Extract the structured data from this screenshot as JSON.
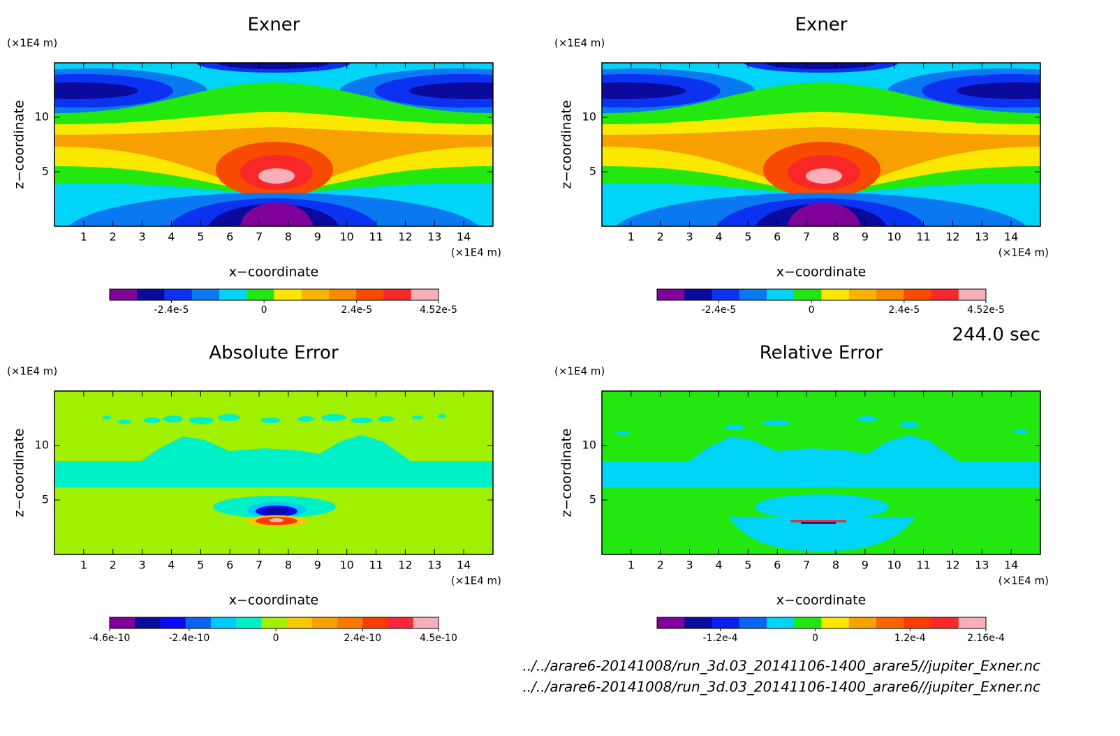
{
  "chart_data": [
    {
      "type": "contour",
      "title": "Exner",
      "xlabel": "x−coordinate",
      "ylabel": "z−coordinate",
      "x_unit": "(×1E4 m)",
      "y_unit": "(×1E4 m)",
      "xlim": [
        0,
        15
      ],
      "ylim": [
        0,
        15
      ],
      "xticks": [
        1,
        2,
        3,
        4,
        5,
        6,
        7,
        8,
        9,
        10,
        11,
        12,
        13,
        14
      ],
      "yticks": [
        5,
        10
      ],
      "colorbar": {
        "colors": [
          "#80009a",
          "#0a0a9c",
          "#0a32f0",
          "#0a78f0",
          "#00d4f8",
          "#22e810",
          "#fae800",
          "#f8b400",
          "#f88a00",
          "#f84a00",
          "#f82828",
          "#f8b0b8"
        ],
        "clim": [
          -4e-05,
          4.52e-05
        ],
        "ticks": [
          {
            "value": -2.4e-05,
            "label": "-2.4e-5"
          },
          0,
          {
            "value": 2.4e-05,
            "label": "2.4e-5"
          },
          {
            "value": 4.52e-05,
            "label": "4.52e-5"
          }
        ]
      }
    },
    {
      "type": "contour",
      "title": "Exner",
      "xlabel": "x−coordinate",
      "ylabel": "z−coordinate",
      "x_unit": "(×1E4 m)",
      "y_unit": "(×1E4 m)",
      "xlim": [
        0,
        15
      ],
      "ylim": [
        0,
        15
      ],
      "xticks": [
        1,
        2,
        3,
        4,
        5,
        6,
        7,
        8,
        9,
        10,
        11,
        12,
        13,
        14
      ],
      "yticks": [
        5,
        10
      ],
      "colorbar": {
        "colors": [
          "#80009a",
          "#0a0a9c",
          "#0a32f0",
          "#0a78f0",
          "#00d4f8",
          "#22e810",
          "#fae800",
          "#f8b400",
          "#f88a00",
          "#f84a00",
          "#f82828",
          "#f8b0b8"
        ],
        "clim": [
          -4e-05,
          4.52e-05
        ],
        "ticks": [
          {
            "value": -2.4e-05,
            "label": "-2.4e-5"
          },
          0,
          {
            "value": 2.4e-05,
            "label": "2.4e-5"
          },
          {
            "value": 4.52e-05,
            "label": "4.52e-5"
          }
        ]
      }
    },
    {
      "type": "contour",
      "title": "Absolute Error",
      "xlabel": "x−coordinate",
      "ylabel": "z−coordinate",
      "x_unit": "(×1E4 m)",
      "y_unit": "(×1E4 m)",
      "xlim": [
        0,
        15
      ],
      "ylim": [
        0,
        15
      ],
      "xticks": [
        1,
        2,
        3,
        4,
        5,
        6,
        7,
        8,
        9,
        10,
        11,
        12,
        13,
        14
      ],
      "yticks": [
        5,
        10
      ],
      "colorbar": {
        "colors": [
          "#80009a",
          "#0a0a9c",
          "#0a0af0",
          "#0a64f0",
          "#00c8f8",
          "#00f0c8",
          "#a0f000",
          "#f8c800",
          "#f8a000",
          "#f87800",
          "#f83c00",
          "#f82838",
          "#f8b0b8"
        ],
        "clim": [
          -4.6e-10,
          4.5e-10
        ],
        "ticks": [
          {
            "value": -4.6e-10,
            "label": "-4.6e-10"
          },
          {
            "value": -2.4e-10,
            "label": "-2.4e-10"
          },
          0,
          {
            "value": 2.4e-10,
            "label": "2.4e-10"
          },
          {
            "value": 4.5e-10,
            "label": "4.5e-10"
          }
        ]
      }
    },
    {
      "type": "contour",
      "title": "Relative Error",
      "xlabel": "x−coordinate",
      "ylabel": "z−coordinate",
      "x_unit": "(×1E4 m)",
      "y_unit": "(×1E4 m)",
      "xlim": [
        0,
        15
      ],
      "ylim": [
        0,
        15
      ],
      "xticks": [
        1,
        2,
        3,
        4,
        5,
        6,
        7,
        8,
        9,
        10,
        11,
        12,
        13,
        14
      ],
      "yticks": [
        5,
        10
      ],
      "colorbar": {
        "colors": [
          "#80009a",
          "#0a0a9c",
          "#0a1ef0",
          "#0a64f0",
          "#00d4f8",
          "#22e810",
          "#fae800",
          "#f8a000",
          "#f86400",
          "#f83c00",
          "#f82828",
          "#f8b0b8"
        ],
        "clim": [
          -0.0002,
          0.000216
        ],
        "ticks": [
          {
            "value": -0.00012,
            "label": "-1.2e-4"
          },
          0,
          {
            "value": 0.00012,
            "label": "1.2e-4"
          },
          {
            "value": 0.000216,
            "label": "2.16e-4"
          }
        ]
      }
    }
  ],
  "time_label": "244.0 sec",
  "file_labels": [
    "../../arare6-20141008/run_3d.03_20141106-1400_arare5//jupiter_Exner.nc",
    "../../arare6-20141008/run_3d.03_20141106-1400_arare6//jupiter_Exner.nc"
  ]
}
